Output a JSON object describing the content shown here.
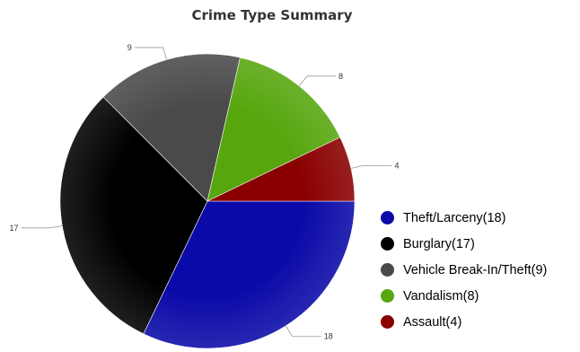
{
  "chart_data": {
    "type": "pie",
    "title": "Crime Type Summary",
    "slices": [
      {
        "label": "Theft/Larceny",
        "value": 18,
        "legend_text": "Theft/Larceny(18)",
        "color": "#0a0aa8"
      },
      {
        "label": "Burglary",
        "value": 17,
        "legend_text": "Burglary(17)",
        "color": "#000000"
      },
      {
        "label": "Vehicle Break-In/Theft",
        "value": 9,
        "legend_text": "Vehicle Break-In/Theft(9)",
        "color": "#4a4a4a"
      },
      {
        "label": "Vandalism",
        "value": 8,
        "legend_text": "Vandalism(8)",
        "color": "#57a60e"
      },
      {
        "label": "Assault",
        "value": 4,
        "legend_text": "Assault(4)",
        "color": "#8a0000"
      }
    ],
    "start_angle_deg": 0,
    "direction": "clockwise",
    "legend_position": "right"
  }
}
